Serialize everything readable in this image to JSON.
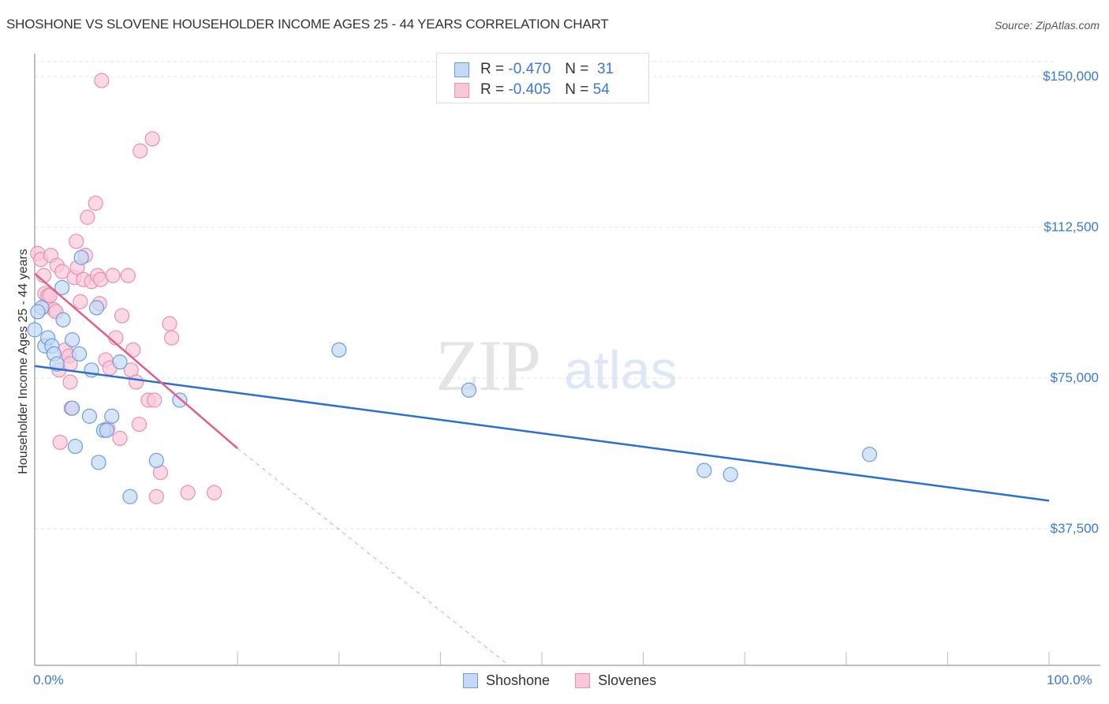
{
  "header": {
    "title": "SHOSHONE VS SLOVENE HOUSEHOLDER INCOME AGES 25 - 44 YEARS CORRELATION CHART",
    "source": "Source: ZipAtlas.com"
  },
  "legend": {
    "shoshone": {
      "r_label": "R =",
      "r_value": "-0.470",
      "n_label": "N =",
      "n_value": "31",
      "name": "Shoshone"
    },
    "slovenes": {
      "r_label": "R =",
      "r_value": "-0.405",
      "n_label": "N =",
      "n_value": "54",
      "name": "Slovenes"
    }
  },
  "watermark": {
    "zip": "ZIP",
    "atlas": "atlas"
  },
  "axes": {
    "ylabel": "Householder Income Ages 25 - 44 years",
    "yticks": [
      "$150,000",
      "$112,500",
      "$75,000",
      "$37,500"
    ],
    "xticks": [
      "0.0%",
      "100.0%"
    ]
  },
  "colors": {
    "shoshone_fill": "#c5d9f5",
    "shoshone_stroke": "#6a9de0",
    "shoshone_line": "#2a6fd4",
    "slovenes_fill": "#f9c8d8",
    "slovenes_stroke": "#ea8fad",
    "slovenes_line": "#e0608a",
    "tick_label": "#3b78d8"
  },
  "chart_data": {
    "type": "scatter",
    "title": "SHOSHONE VS SLOVENE HOUSEHOLDER INCOME AGES 25 - 44 YEARS CORRELATION CHART",
    "xlabel": "",
    "ylabel": "Householder Income Ages 25 - 44 years",
    "xlim": [
      0,
      100
    ],
    "ylim": [
      4000,
      155000
    ],
    "x_unit": "%",
    "y_ticks": [
      37500,
      75000,
      112500,
      150000
    ],
    "grid": true,
    "legend_position": "top-center",
    "series": [
      {
        "name": "Shoshone",
        "r": -0.47,
        "n": 31,
        "trend": {
          "x0": 0,
          "y0": 78000,
          "x1": 100,
          "y1": 44500
        },
        "points": [
          [
            0.0,
            87000
          ],
          [
            0.7,
            92500
          ],
          [
            1.0,
            83000
          ],
          [
            1.3,
            85000
          ],
          [
            1.7,
            83000
          ],
          [
            1.9,
            81000
          ],
          [
            2.2,
            78500
          ],
          [
            2.7,
            97500
          ],
          [
            2.8,
            89500
          ],
          [
            3.7,
            84500
          ],
          [
            3.7,
            67500
          ],
          [
            4.0,
            58000
          ],
          [
            4.4,
            81000
          ],
          [
            4.6,
            105000
          ],
          [
            5.4,
            65500
          ],
          [
            5.6,
            77000
          ],
          [
            6.1,
            92500
          ],
          [
            6.3,
            54000
          ],
          [
            6.8,
            62000
          ],
          [
            7.1,
            62000
          ],
          [
            7.6,
            65500
          ],
          [
            8.4,
            79000
          ],
          [
            9.4,
            45500
          ],
          [
            12.0,
            54500
          ],
          [
            14.3,
            69500
          ],
          [
            30.0,
            82000
          ],
          [
            42.8,
            72000
          ],
          [
            66.0,
            52000
          ],
          [
            68.6,
            51000
          ],
          [
            82.3,
            56000
          ],
          [
            0.3,
            91500
          ]
        ]
      },
      {
        "name": "Slovenes",
        "r": -0.405,
        "n": 54,
        "trend": {
          "x0": 0,
          "y0": 101000,
          "x1": 20,
          "y1": 57500,
          "dashed_extension_to": {
            "x": 46.5,
            "y": 4000
          }
        },
        "points": [
          [
            0.3,
            106000
          ],
          [
            0.6,
            104500
          ],
          [
            0.9,
            100500
          ],
          [
            1.0,
            96000
          ],
          [
            1.2,
            93000
          ],
          [
            1.3,
            95500
          ],
          [
            1.5,
            95500
          ],
          [
            1.6,
            105500
          ],
          [
            1.9,
            92000
          ],
          [
            2.1,
            91500
          ],
          [
            2.2,
            103000
          ],
          [
            2.4,
            77000
          ],
          [
            2.5,
            59000
          ],
          [
            2.7,
            101500
          ],
          [
            3.0,
            82000
          ],
          [
            3.4,
            80500
          ],
          [
            3.5,
            78500
          ],
          [
            3.5,
            74000
          ],
          [
            3.6,
            67500
          ],
          [
            3.9,
            100000
          ],
          [
            4.1,
            109000
          ],
          [
            4.2,
            102500
          ],
          [
            4.5,
            94000
          ],
          [
            4.8,
            99500
          ],
          [
            5.0,
            105500
          ],
          [
            5.2,
            115000
          ],
          [
            5.6,
            99000
          ],
          [
            6.0,
            118500
          ],
          [
            6.2,
            100500
          ],
          [
            6.4,
            93500
          ],
          [
            6.5,
            99500
          ],
          [
            7.0,
            79500
          ],
          [
            7.2,
            62500
          ],
          [
            7.4,
            77500
          ],
          [
            7.7,
            100500
          ],
          [
            8.0,
            85000
          ],
          [
            8.4,
            60000
          ],
          [
            8.6,
            90500
          ],
          [
            9.2,
            100500
          ],
          [
            9.5,
            77000
          ],
          [
            9.7,
            82000
          ],
          [
            10.0,
            74000
          ],
          [
            10.3,
            63500
          ],
          [
            10.4,
            131500
          ],
          [
            11.2,
            69500
          ],
          [
            11.6,
            134500
          ],
          [
            11.8,
            69500
          ],
          [
            12.0,
            45500
          ],
          [
            12.4,
            51500
          ],
          [
            13.3,
            88500
          ],
          [
            13.5,
            85000
          ],
          [
            15.1,
            46500
          ],
          [
            17.7,
            46500
          ],
          [
            6.6,
            149000
          ]
        ]
      }
    ]
  }
}
